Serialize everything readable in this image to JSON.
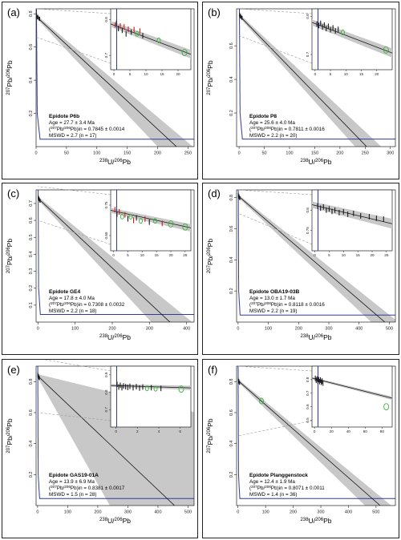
{
  "colors": {
    "band": "#c8c8c8",
    "curve": "#2f3b9c",
    "regression": "#111111",
    "refline": "#9a9a9a",
    "point_black": "#1a1a1a",
    "point_red": "#d11a1a",
    "point_green": "#36b336"
  },
  "chart_data": [
    {
      "type": "scatter",
      "panel_label": "(a)",
      "xlabel_pre": "238",
      "xlabel_mid": "U/",
      "xlabel_sup2": "206",
      "xlabel_end": "Pb",
      "ylabel_pre": "207",
      "ylabel_mid": "Pb/",
      "ylabel_sup2": "206",
      "ylabel_end": "Pb",
      "xlim": [
        0,
        260
      ],
      "ylim": [
        0,
        0.83
      ],
      "xticks": [
        0,
        50,
        100,
        150,
        200,
        250
      ],
      "xtick_labels": [
        "0",
        "50",
        "100",
        "150",
        "200",
        "250"
      ],
      "yticks": [
        0.2,
        0.4,
        0.6,
        0.8
      ],
      "ytick_labels": [
        "0.2",
        "0.4",
        "0.6",
        "0.8"
      ],
      "intercept": 0.7845,
      "age_x": 231,
      "band": [
        200,
        258
      ],
      "inset": {
        "xlim": [
          -1,
          24
        ],
        "ylim": [
          0.66,
          0.83
        ],
        "xticks": [
          0,
          5,
          10,
          15,
          20
        ],
        "xtick_labels": [
          "0",
          "5",
          "10",
          "15",
          "20"
        ],
        "yticks": [
          0.7,
          0.8
        ],
        "ytick_labels": [
          "0.7",
          "0.8"
        ],
        "points": [
          {
            "x": 0.4,
            "y": 0.785,
            "c": "red"
          },
          {
            "x": 0.8,
            "y": 0.79,
            "c": "black"
          },
          {
            "x": 1.4,
            "y": 0.775,
            "c": "black"
          },
          {
            "x": 2.0,
            "y": 0.782,
            "c": "red"
          },
          {
            "x": 2.6,
            "y": 0.77,
            "c": "black"
          },
          {
            "x": 3.2,
            "y": 0.78,
            "c": "red"
          },
          {
            "x": 3.8,
            "y": 0.76,
            "c": "black"
          },
          {
            "x": 4.5,
            "y": 0.773,
            "c": "red"
          },
          {
            "x": 5.4,
            "y": 0.765,
            "c": "black"
          },
          {
            "x": 6.3,
            "y": 0.772,
            "c": "red"
          },
          {
            "x": 7.2,
            "y": 0.76,
            "c": "green"
          },
          {
            "x": 8.1,
            "y": 0.768,
            "c": "red"
          },
          {
            "x": 9.0,
            "y": 0.755,
            "c": "black"
          },
          {
            "x": 14.0,
            "y": 0.742,
            "c": "green"
          },
          {
            "x": 22.0,
            "y": 0.708,
            "c": "green"
          }
        ]
      },
      "annotation": {
        "title": "Epidote P6b",
        "age": "Age = 27.7 ± 3.4 Ma",
        "initial_sup1": "207",
        "initial_mid": "Pb/",
        "initial_sup2": "206",
        "initial_end": "Pb)in = 0.7845 ± 0.0014",
        "mswd": "MSWD = 2.7 (n = 17)"
      }
    },
    {
      "type": "scatter",
      "panel_label": "(b)",
      "xlabel_pre": "238",
      "xlabel_mid": "U/",
      "xlabel_sup2": "206",
      "xlabel_end": "Pb",
      "ylabel_pre": "207",
      "ylabel_mid": "Pb/",
      "ylabel_sup2": "206",
      "ylabel_end": "Pb",
      "xlim": [
        -5,
        310
      ],
      "ylim": [
        0,
        0.82
      ],
      "xticks": [
        0,
        50,
        100,
        150,
        200,
        250,
        300
      ],
      "xtick_labels": [
        "0",
        "50",
        "100",
        "150",
        "200",
        "250",
        "300"
      ],
      "yticks": [
        0.2,
        0.4,
        0.6
      ],
      "ytick_labels": [
        "0.2",
        "0.4",
        "0.6"
      ],
      "intercept": 0.7811,
      "age_x": 253,
      "band": [
        230,
        282
      ],
      "inset": {
        "xlim": [
          -1,
          25
        ],
        "ylim": [
          0.66,
          0.82
        ],
        "xticks": [
          0,
          5,
          10,
          15,
          20
        ],
        "xtick_labels": [
          "0",
          "5",
          "10",
          "15",
          "20"
        ],
        "yticks": [
          0.7,
          0.8
        ],
        "ytick_labels": [
          "0.7",
          "0.8"
        ],
        "points": [
          {
            "x": 0.6,
            "y": 0.78,
            "c": "black"
          },
          {
            "x": 1.2,
            "y": 0.776,
            "c": "black"
          },
          {
            "x": 1.8,
            "y": 0.782,
            "c": "black"
          },
          {
            "x": 2.4,
            "y": 0.772,
            "c": "black"
          },
          {
            "x": 3.0,
            "y": 0.777,
            "c": "black"
          },
          {
            "x": 3.6,
            "y": 0.768,
            "c": "black"
          },
          {
            "x": 4.3,
            "y": 0.774,
            "c": "black"
          },
          {
            "x": 5.0,
            "y": 0.765,
            "c": "black"
          },
          {
            "x": 5.8,
            "y": 0.77,
            "c": "black"
          },
          {
            "x": 6.6,
            "y": 0.762,
            "c": "black"
          },
          {
            "x": 7.5,
            "y": 0.766,
            "c": "black"
          },
          {
            "x": 9.0,
            "y": 0.758,
            "c": "green"
          },
          {
            "x": 23.0,
            "y": 0.712,
            "c": "green"
          }
        ]
      },
      "annotation": {
        "title": "Epidote P8",
        "age": "Age = 25.6 ± 4.0 Ma",
        "initial_sup1": "207",
        "initial_mid": "Pb/",
        "initial_sup2": "206",
        "initial_end": "Pb)in = 0.7811 ± 0.0016",
        "mswd": "MSWD = 2.2 (n = 20)"
      }
    },
    {
      "type": "scatter",
      "panel_label": "(c)",
      "xlabel_pre": "238",
      "xlabel_mid": "U/",
      "xlabel_sup2": "206",
      "xlabel_end": "Pb",
      "ylabel_pre": "207",
      "ylabel_mid": "Pb/",
      "ylabel_sup2": "206",
      "ylabel_end": "Pb",
      "xlim": [
        -5,
        420
      ],
      "ylim": [
        0,
        0.78
      ],
      "xticks": [
        0,
        100,
        200,
        300,
        400
      ],
      "xtick_labels": [
        "0",
        "100",
        "200",
        "300",
        "400"
      ],
      "yticks": [
        0.1,
        0.2,
        0.3,
        0.4,
        0.5,
        0.6,
        0.7
      ],
      "ytick_labels": [
        "0.1",
        "0.2",
        "0.3",
        "0.4",
        "0.5",
        "0.6",
        "0.7"
      ],
      "intercept": 0.7308,
      "age_x": 355,
      "band": [
        305,
        415
      ],
      "inset": {
        "xlim": [
          -1,
          27
        ],
        "ylim": [
          0.6,
          0.8
        ],
        "xticks": [
          0,
          5,
          10,
          15,
          20,
          25
        ],
        "xtick_labels": [
          "0",
          "5",
          "10",
          "15",
          "20",
          "25"
        ],
        "yticks": [
          0.65,
          0.75
        ],
        "ytick_labels": [
          "0.65",
          "0.75"
        ],
        "points": [
          {
            "x": 0.5,
            "y": 0.735,
            "c": "red"
          },
          {
            "x": 1.2,
            "y": 0.72,
            "c": "black"
          },
          {
            "x": 2.0,
            "y": 0.728,
            "c": "red"
          },
          {
            "x": 3.0,
            "y": 0.712,
            "c": "green"
          },
          {
            "x": 4.0,
            "y": 0.718,
            "c": "red"
          },
          {
            "x": 5.0,
            "y": 0.705,
            "c": "black"
          },
          {
            "x": 6.0,
            "y": 0.712,
            "c": "green"
          },
          {
            "x": 7.0,
            "y": 0.7,
            "c": "red"
          },
          {
            "x": 8.0,
            "y": 0.708,
            "c": "black"
          },
          {
            "x": 9.5,
            "y": 0.698,
            "c": "green"
          },
          {
            "x": 11.0,
            "y": 0.704,
            "c": "red"
          },
          {
            "x": 12.5,
            "y": 0.694,
            "c": "black"
          },
          {
            "x": 14.5,
            "y": 0.698,
            "c": "green"
          },
          {
            "x": 17.0,
            "y": 0.69,
            "c": "red"
          },
          {
            "x": 20.0,
            "y": 0.688,
            "c": "green"
          },
          {
            "x": 25.0,
            "y": 0.678,
            "c": "green"
          }
        ]
      },
      "annotation": {
        "title": "Epidote GE4",
        "age": "Age = 17.8 ± 4.0 Ma",
        "initial_sup1": "207",
        "initial_mid": "Pb/",
        "initial_sup2": "206",
        "initial_end": "Pb)in = 0.7308 ± 0.0032",
        "mswd": "MSWD = 2.2 (n = 18)"
      }
    },
    {
      "type": "scatter",
      "panel_label": "(d)",
      "xlabel_pre": "238",
      "xlabel_mid": "U/",
      "xlabel_sup2": "206",
      "xlabel_end": "Pb",
      "ylabel_pre": "207",
      "ylabel_mid": "Pb/",
      "ylabel_sup2": "206",
      "ylabel_end": "Pb",
      "xlim": [
        -5,
        520
      ],
      "ylim": [
        0,
        0.85
      ],
      "xticks": [
        0,
        100,
        200,
        300,
        400,
        500
      ],
      "xtick_labels": [
        "0",
        "100",
        "200",
        "300",
        "400",
        "500"
      ],
      "yticks": [
        0.2,
        0.4,
        0.6,
        0.8
      ],
      "ytick_labels": [
        "0.2",
        "0.4",
        "0.6",
        "0.8"
      ],
      "intercept": 0.8118,
      "age_x": 485,
      "band": [
        440,
        530
      ],
      "inset": {
        "xlim": [
          -1,
          27
        ],
        "ylim": [
          0.7,
          0.85
        ],
        "xticks": [
          0,
          5,
          10,
          15,
          20,
          25
        ],
        "xtick_labels": [
          "0",
          "5",
          "10",
          "15",
          "20",
          "25"
        ],
        "yticks": [
          0.75,
          0.8
        ],
        "ytick_labels": [
          "0.75",
          "0.8"
        ],
        "points": [
          {
            "x": 1.0,
            "y": 0.81,
            "c": "black"
          },
          {
            "x": 2.0,
            "y": 0.805,
            "c": "black"
          },
          {
            "x": 3.0,
            "y": 0.808,
            "c": "black"
          },
          {
            "x": 4.0,
            "y": 0.8,
            "c": "black"
          },
          {
            "x": 5.0,
            "y": 0.803,
            "c": "black"
          },
          {
            "x": 6.0,
            "y": 0.797,
            "c": "black"
          },
          {
            "x": 7.0,
            "y": 0.8,
            "c": "black"
          },
          {
            "x": 8.5,
            "y": 0.794,
            "c": "black"
          },
          {
            "x": 10.0,
            "y": 0.796,
            "c": "black"
          },
          {
            "x": 11.5,
            "y": 0.79,
            "c": "black"
          },
          {
            "x": 13.5,
            "y": 0.792,
            "c": "black"
          },
          {
            "x": 16.0,
            "y": 0.786,
            "c": "black"
          },
          {
            "x": 19.0,
            "y": 0.784,
            "c": "black"
          },
          {
            "x": 21.5,
            "y": 0.78,
            "c": "black"
          },
          {
            "x": 24.0,
            "y": 0.778,
            "c": "black"
          }
        ]
      },
      "annotation": {
        "title": "Epidote OBA19-03B",
        "age": "Age = 13.0 ± 1.7 Ma",
        "initial_sup1": "207",
        "initial_mid": "Pb/",
        "initial_sup2": "206",
        "initial_end": "Pb)in = 0.8118 ± 0.0016",
        "mswd": "MSWD = 2.2 (n = 19)"
      }
    },
    {
      "type": "scatter",
      "panel_label": "(e)",
      "xlabel_pre": "238",
      "xlabel_mid": "U/",
      "xlabel_sup2": "206",
      "xlabel_end": "Pb",
      "ylabel_pre": "207",
      "ylabel_mid": "Pb/",
      "ylabel_sup2": "206",
      "ylabel_end": "Pb",
      "xlim": [
        -5,
        520
      ],
      "ylim": [
        0,
        0.9
      ],
      "xticks": [
        0,
        100,
        200,
        300,
        400,
        500
      ],
      "xtick_labels": [
        "0",
        "100",
        "200",
        "300",
        "400",
        "500"
      ],
      "yticks": [
        0.2,
        0.4,
        0.6,
        0.8
      ],
      "ytick_labels": [
        "0.2",
        "0.4",
        "0.6",
        "0.8"
      ],
      "intercept": 0.8381,
      "age_x": 455,
      "band": [
        240,
        1800
      ],
      "inset": {
        "xlim": [
          -0.5,
          7
        ],
        "ylim": [
          0.6,
          0.95
        ],
        "xticks": [
          0,
          2,
          4,
          6
        ],
        "xtick_labels": [
          "0",
          "2",
          "4",
          "6"
        ],
        "yticks": [
          0.7,
          0.8,
          0.9
        ],
        "ytick_labels": [
          "0.7",
          "0.8",
          "0.9"
        ],
        "points": [
          {
            "x": 0.1,
            "y": 0.845,
            "c": "black"
          },
          {
            "x": 0.25,
            "y": 0.83,
            "c": "black"
          },
          {
            "x": 0.4,
            "y": 0.84,
            "c": "black"
          },
          {
            "x": 0.55,
            "y": 0.826,
            "c": "black"
          },
          {
            "x": 0.7,
            "y": 0.836,
            "c": "black"
          },
          {
            "x": 0.9,
            "y": 0.832,
            "c": "black"
          },
          {
            "x": 1.1,
            "y": 0.828,
            "c": "black"
          },
          {
            "x": 1.3,
            "y": 0.834,
            "c": "black"
          },
          {
            "x": 1.6,
            "y": 0.826,
            "c": "black"
          },
          {
            "x": 1.9,
            "y": 0.832,
            "c": "black"
          },
          {
            "x": 2.2,
            "y": 0.824,
            "c": "black"
          },
          {
            "x": 2.5,
            "y": 0.83,
            "c": "black"
          },
          {
            "x": 2.9,
            "y": 0.822,
            "c": "green"
          },
          {
            "x": 3.3,
            "y": 0.826,
            "c": "black"
          },
          {
            "x": 3.7,
            "y": 0.82,
            "c": "green"
          },
          {
            "x": 4.2,
            "y": 0.822,
            "c": "black"
          },
          {
            "x": 6.1,
            "y": 0.818,
            "c": "green"
          }
        ]
      },
      "annotation": {
        "title": "Epidote GAS19-01A",
        "age": "Age = 13.9 ± 6.9 Ma",
        "initial_sup1": "207",
        "initial_mid": "Pb/",
        "initial_sup2": "206",
        "initial_end": "Pb)in = 0.8381 ± 0.0017",
        "mswd": "MSWD = 1.5 (n = 28)"
      }
    },
    {
      "type": "scatter",
      "panel_label": "(f)",
      "xlabel_pre": "238",
      "xlabel_mid": "U/",
      "xlabel_sup2": "206",
      "xlabel_end": "Pb",
      "ylabel_pre": "207",
      "ylabel_mid": "Pb/",
      "ylabel_sup2": "206",
      "ylabel_end": "Pb",
      "xlim": [
        -5,
        570
      ],
      "ylim": [
        0,
        0.9
      ],
      "xticks": [
        0,
        100,
        200,
        300,
        400,
        500
      ],
      "xtick_labels": [
        "0",
        "100",
        "200",
        "300",
        "400",
        "500"
      ],
      "yticks": [
        0.2,
        0.4,
        0.6,
        0.8
      ],
      "ytick_labels": [
        "0.2",
        "0.4",
        "0.6",
        "0.8"
      ],
      "intercept": 0.8071,
      "age_x": 515,
      "band": [
        460,
        555
      ],
      "outer_points": [
        {
          "x": 85,
          "y": 0.675,
          "c": "green"
        }
      ],
      "inset": {
        "xlim": [
          -3,
          92
        ],
        "ylim": [
          0.45,
          0.9
        ],
        "xticks": [
          0,
          20,
          40,
          60,
          80
        ],
        "xtick_labels": [
          "0",
          "20",
          "40",
          "60",
          "80"
        ],
        "yticks": [
          0.5,
          0.6,
          0.7,
          0.8
        ],
        "ytick_labels": [
          "0.5",
          "0.6",
          "0.7",
          "0.8"
        ],
        "points": [
          {
            "x": 1.0,
            "y": 0.81,
            "c": "black"
          },
          {
            "x": 2.0,
            "y": 0.795,
            "c": "black"
          },
          {
            "x": 3.0,
            "y": 0.805,
            "c": "black"
          },
          {
            "x": 4.0,
            "y": 0.79,
            "c": "black"
          },
          {
            "x": 5.0,
            "y": 0.8,
            "c": "black"
          },
          {
            "x": 6.0,
            "y": 0.785,
            "c": "black"
          },
          {
            "x": 7.0,
            "y": 0.797,
            "c": "black"
          },
          {
            "x": 8.0,
            "y": 0.78,
            "c": "black"
          },
          {
            "x": 9.0,
            "y": 0.79,
            "c": "black"
          },
          {
            "x": 10.0,
            "y": 0.775,
            "c": "black"
          },
          {
            "x": 85.0,
            "y": 0.6,
            "c": "green"
          }
        ]
      },
      "annotation": {
        "title": "Epidote Planggenstock",
        "age": "Age = 12.4 ± 1.9 Ma",
        "initial_sup1": "207",
        "initial_mid": "Pb/",
        "initial_sup2": "206",
        "initial_end": "Pb)in = 0.8071 ± 0.0011",
        "mswd": "MSWD = 1.4 (n = 36)"
      }
    }
  ]
}
